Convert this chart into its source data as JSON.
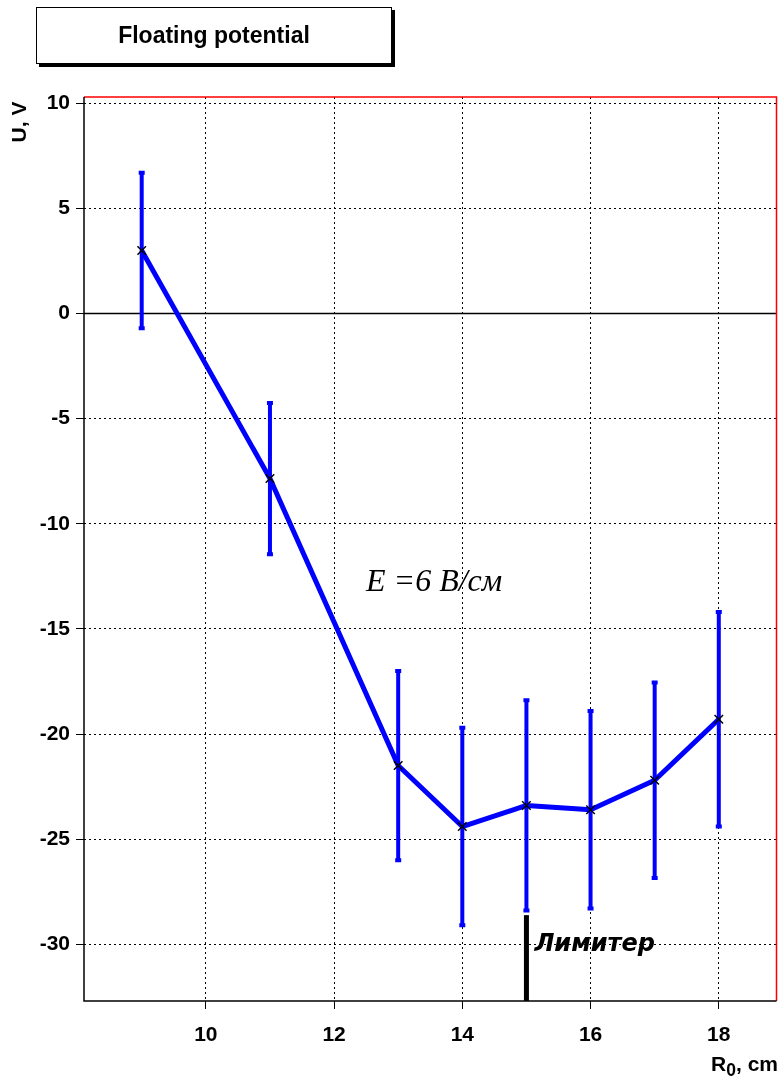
{
  "chart_data": {
    "type": "line",
    "title": "Floating potential",
    "xlabel": "R$_{0}$, cm",
    "ylabel": "U, V",
    "x": [
      9,
      11,
      13,
      14,
      15,
      16,
      17,
      18
    ],
    "series": [
      {
        "color": "#0000ff",
        "values": [
          3.0,
          -7.85,
          -21.5,
          -24.4,
          -23.4,
          -23.6,
          -22.2,
          -19.3
        ],
        "errors": [
          3.7,
          3.6,
          4.5,
          4.7,
          5.0,
          4.7,
          4.65,
          5.1
        ]
      }
    ],
    "xlim": [
      8.1,
      18.9
    ],
    "xticks": [
      10,
      12,
      14,
      16,
      18
    ],
    "ylim": [
      -32.7,
      10.3
    ],
    "yticks": [
      -30,
      -25,
      -20,
      -15,
      -10,
      -5,
      0,
      5,
      10
    ],
    "grid": true,
    "marker": "cross",
    "line_style": "solid",
    "ref_lines": [
      {
        "axis": "y",
        "value": 0,
        "color": "#000000"
      },
      {
        "axis": "x",
        "value": 15,
        "label": "Лимитер",
        "color": "#000000"
      }
    ],
    "annotations": [
      "E =6 В/см"
    ]
  }
}
